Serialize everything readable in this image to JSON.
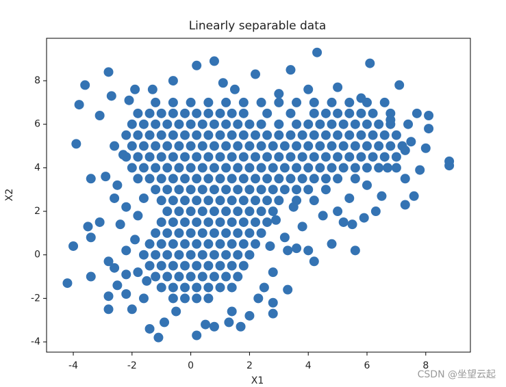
{
  "chart_data": {
    "type": "scatter",
    "title": "Linearly separable data",
    "xlabel": "X1",
    "ylabel": "X2",
    "watermark": "CSDN @坐望云起",
    "color": "#3473b3",
    "xlim": [
      -4.91,
      9.52
    ],
    "ylim": [
      -4.47,
      9.95
    ],
    "xticks": [
      -4,
      -2,
      0,
      2,
      4,
      6,
      8
    ],
    "yticks": [
      -4,
      -2,
      0,
      2,
      4,
      6,
      8
    ],
    "x": [
      -1.2,
      -0.6,
      0.0,
      0.6,
      1.2,
      1.8,
      2.4,
      3.0,
      3.6,
      4.2,
      4.8,
      5.4,
      6.0,
      -1.8,
      -1.4,
      -1.0,
      -0.6,
      -0.2,
      0.2,
      0.6,
      1.0,
      1.4,
      1.8,
      2.6,
      3.4,
      4.2,
      4.6,
      5.0,
      5.4,
      5.8,
      6.2,
      6.8,
      -2.0,
      -1.6,
      -1.2,
      -0.8,
      -0.4,
      0.0,
      0.4,
      0.8,
      1.2,
      1.6,
      2.0,
      2.4,
      3.0,
      3.6,
      4.0,
      4.4,
      4.8,
      5.2,
      5.6,
      6.0,
      6.4,
      6.8,
      7.4,
      -2.2,
      -1.8,
      -1.4,
      -1.0,
      -0.6,
      -0.2,
      0.2,
      0.6,
      1.0,
      1.4,
      1.8,
      2.2,
      2.6,
      3.0,
      3.4,
      3.8,
      4.2,
      4.6,
      5.0,
      5.4,
      5.8,
      6.2,
      6.6,
      7.0,
      -2.0,
      -1.6,
      -1.2,
      -0.8,
      -0.4,
      0.0,
      0.4,
      0.8,
      1.2,
      1.6,
      2.0,
      2.4,
      2.8,
      3.2,
      3.6,
      4.0,
      4.4,
      4.8,
      5.2,
      5.6,
      6.0,
      6.4,
      6.8,
      7.2,
      -2.2,
      -1.8,
      -1.4,
      -1.0,
      -0.6,
      -0.2,
      0.2,
      0.6,
      1.0,
      1.4,
      1.8,
      2.2,
      2.6,
      3.0,
      3.4,
      3.8,
      4.2,
      4.6,
      5.0,
      5.4,
      5.8,
      6.2,
      6.6,
      7.0,
      -2.0,
      -1.6,
      -1.2,
      -0.8,
      -0.4,
      0.0,
      0.4,
      0.8,
      1.2,
      1.6,
      2.0,
      2.4,
      2.8,
      3.2,
      3.6,
      4.0,
      4.4,
      4.8,
      5.2,
      5.6,
      6.0,
      6.4,
      7.0,
      -1.8,
      -1.4,
      -1.0,
      -0.6,
      -0.2,
      0.2,
      0.6,
      1.0,
      1.4,
      1.8,
      2.2,
      2.6,
      3.0,
      3.4,
      3.8,
      4.2,
      4.6,
      5.0,
      5.6,
      -1.2,
      -0.8,
      -0.4,
      0.0,
      0.4,
      0.8,
      1.2,
      1.6,
      2.0,
      2.4,
      2.8,
      3.2,
      3.6,
      4.0,
      4.6,
      -1.0,
      -0.6,
      -0.2,
      0.2,
      0.6,
      1.0,
      1.4,
      1.8,
      2.2,
      2.6,
      3.0,
      3.6,
      -0.8,
      -0.4,
      0.0,
      0.4,
      0.8,
      1.2,
      1.6,
      2.0,
      2.4,
      2.8,
      -1.0,
      -0.6,
      -0.2,
      0.2,
      0.6,
      1.0,
      1.4,
      1.8,
      2.2,
      2.6,
      -1.2,
      -0.8,
      -0.4,
      0.0,
      0.4,
      0.8,
      1.2,
      1.6,
      2.0,
      2.4,
      -1.4,
      -1.0,
      -0.6,
      -0.2,
      0.2,
      0.6,
      1.0,
      1.4,
      1.8,
      2.2,
      -1.6,
      -1.2,
      -0.8,
      -0.4,
      0.0,
      0.4,
      0.8,
      1.2,
      1.6,
      2.0,
      -1.4,
      -1.0,
      -0.6,
      -0.2,
      0.2,
      0.6,
      1.0,
      1.4,
      1.8,
      -1.2,
      -0.8,
      -0.4,
      0.0,
      0.4,
      0.8,
      1.2,
      1.6,
      -1.0,
      -0.6,
      -0.2,
      0.2,
      0.6,
      1.0,
      1.4,
      -0.6,
      -0.2,
      0.2,
      0.6,
      4.3,
      6.1,
      0.8,
      -2.8,
      -3.6,
      -3.8,
      -3.9,
      -3.4,
      -2.9,
      -2.6,
      -3.1,
      -3.5,
      -3.4,
      -4.0,
      -4.2,
      -3.4,
      -2.8,
      -2.8,
      -2.8,
      -2.0,
      -1.4,
      -1.1,
      -0.9,
      0.2,
      0.5,
      0.8,
      1.3,
      1.7,
      2.0,
      2.8,
      2.8,
      3.3,
      2.5,
      -1.6,
      -2.2,
      -2.5,
      -2.6,
      -2.2,
      -2.4,
      -2.2,
      -2.5,
      -2.6,
      -3.1,
      -2.7,
      -2.1,
      -1.3,
      -0.6,
      0.2,
      1.1,
      2.2,
      3.4,
      5.0,
      5.8,
      7.1,
      7.7,
      8.1,
      8.1,
      7.5,
      8.0,
      7.8,
      8.8,
      8.8,
      7.3,
      7.6,
      7.3,
      6.5,
      6.3,
      5.9,
      5.5,
      5.2,
      5.6,
      4.8,
      4.2,
      4.0,
      3.6,
      3.2,
      3.8,
      4.5,
      5.0,
      4.2,
      3.3,
      2.8,
      2.3,
      1.4,
      -0.5,
      -1.5,
      -1.9,
      -1.8,
      -1.6,
      -2.3,
      -1.9,
      1.5,
      3.0,
      4.0,
      6.6,
      6.8,
      7.3,
      6.7,
      6.0,
      5.4,
      3.5,
      2.9,
      2.7,
      -1.8,
      -2.2
    ],
    "values": [
      7.0,
      7.0,
      7.0,
      7.0,
      7.0,
      7.0,
      7.0,
      7.0,
      7.0,
      7.0,
      7.0,
      7.0,
      7.0,
      6.5,
      6.5,
      6.5,
      6.5,
      6.5,
      6.5,
      6.5,
      6.5,
      6.5,
      6.5,
      6.5,
      6.5,
      6.5,
      6.5,
      6.5,
      6.5,
      6.5,
      6.5,
      6.5,
      6.0,
      6.0,
      6.0,
      6.0,
      6.0,
      6.0,
      6.0,
      6.0,
      6.0,
      6.0,
      6.0,
      6.0,
      6.0,
      6.0,
      6.0,
      6.0,
      6.0,
      6.0,
      6.0,
      6.0,
      6.0,
      6.0,
      6.0,
      5.5,
      5.5,
      5.5,
      5.5,
      5.5,
      5.5,
      5.5,
      5.5,
      5.5,
      5.5,
      5.5,
      5.5,
      5.5,
      5.5,
      5.5,
      5.5,
      5.5,
      5.5,
      5.5,
      5.5,
      5.5,
      5.5,
      5.5,
      5.5,
      5.0,
      5.0,
      5.0,
      5.0,
      5.0,
      5.0,
      5.0,
      5.0,
      5.0,
      5.0,
      5.0,
      5.0,
      5.0,
      5.0,
      5.0,
      5.0,
      5.0,
      5.0,
      5.0,
      5.0,
      5.0,
      5.0,
      5.0,
      5.0,
      4.5,
      4.5,
      4.5,
      4.5,
      4.5,
      4.5,
      4.5,
      4.5,
      4.5,
      4.5,
      4.5,
      4.5,
      4.5,
      4.5,
      4.5,
      4.5,
      4.5,
      4.5,
      4.5,
      4.5,
      4.5,
      4.5,
      4.5,
      4.5,
      4.0,
      4.0,
      4.0,
      4.0,
      4.0,
      4.0,
      4.0,
      4.0,
      4.0,
      4.0,
      4.0,
      4.0,
      4.0,
      4.0,
      4.0,
      4.0,
      4.0,
      4.0,
      4.0,
      4.0,
      4.0,
      4.0,
      4.0,
      3.5,
      3.5,
      3.5,
      3.5,
      3.5,
      3.5,
      3.5,
      3.5,
      3.5,
      3.5,
      3.5,
      3.5,
      3.5,
      3.5,
      3.5,
      3.5,
      3.5,
      3.5,
      3.5,
      3.0,
      3.0,
      3.0,
      3.0,
      3.0,
      3.0,
      3.0,
      3.0,
      3.0,
      3.0,
      3.0,
      3.0,
      3.0,
      3.0,
      3.0,
      2.5,
      2.5,
      2.5,
      2.5,
      2.5,
      2.5,
      2.5,
      2.5,
      2.5,
      2.5,
      2.5,
      2.5,
      2.0,
      2.0,
      2.0,
      2.0,
      2.0,
      2.0,
      2.0,
      2.0,
      2.0,
      2.0,
      1.5,
      1.5,
      1.5,
      1.5,
      1.5,
      1.5,
      1.5,
      1.5,
      1.5,
      1.5,
      1.0,
      1.0,
      1.0,
      1.0,
      1.0,
      1.0,
      1.0,
      1.0,
      1.0,
      1.0,
      0.5,
      0.5,
      0.5,
      0.5,
      0.5,
      0.5,
      0.5,
      0.5,
      0.5,
      0.5,
      0.0,
      0.0,
      0.0,
      0.0,
      0.0,
      0.0,
      0.0,
      0.0,
      0.0,
      0.0,
      -0.5,
      -0.5,
      -0.5,
      -0.5,
      -0.5,
      -0.5,
      -0.5,
      -0.5,
      -0.5,
      -1.0,
      -1.0,
      -1.0,
      -1.0,
      -1.0,
      -1.0,
      -1.0,
      -1.0,
      -1.5,
      -1.5,
      -1.5,
      -1.5,
      -1.5,
      -1.5,
      -1.5,
      -2.0,
      -2.0,
      -2.0,
      -2.0,
      9.3,
      8.8,
      8.9,
      8.4,
      7.8,
      6.9,
      5.1,
      3.5,
      3.6,
      2.6,
      1.5,
      1.3,
      0.8,
      0.4,
      -1.3,
      -1.0,
      -0.3,
      -1.9,
      -2.5,
      -2.5,
      -3.4,
      -3.8,
      -3.1,
      -3.7,
      -3.2,
      -3.3,
      -3.1,
      -3.3,
      -2.8,
      -2.7,
      -2.2,
      -1.6,
      -1.5,
      -2.0,
      -1.8,
      -1.4,
      -0.6,
      0.2,
      1.4,
      2.2,
      3.2,
      5.0,
      6.4,
      7.3,
      7.1,
      7.6,
      8.0,
      8.7,
      7.9,
      8.3,
      8.5,
      7.7,
      7.2,
      7.8,
      6.5,
      6.4,
      5.8,
      5.2,
      4.9,
      3.9,
      4.1,
      4.3,
      3.5,
      2.7,
      2.3,
      2.7,
      2.0,
      1.7,
      1.4,
      1.5,
      0.2,
      0.5,
      -0.3,
      0.2,
      0.3,
      0.8,
      1.3,
      1.8,
      2.0,
      2.5,
      0.2,
      -0.8,
      -2.0,
      -2.6,
      -2.6,
      -1.2,
      0.7,
      1.8,
      2.6,
      4.6,
      7.6,
      7.6,
      7.4,
      7.6,
      7.0,
      6.2,
      4.8,
      4.0,
      3.2,
      2.6,
      2.2,
      1.6,
      0.4,
      -0.8,
      -0.9
    ]
  }
}
